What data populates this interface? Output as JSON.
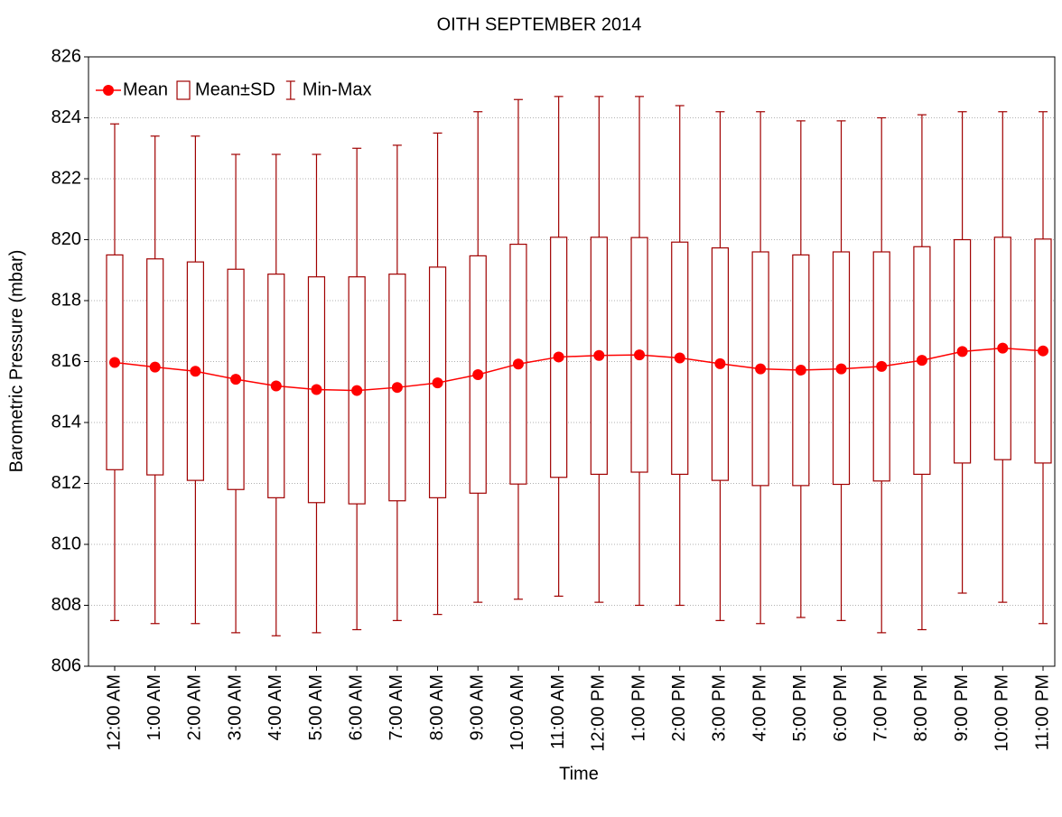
{
  "chart_data": {
    "type": "box",
    "title": "OITH SEPTEMBER 2014",
    "x_label": "Time",
    "y_label": "Barometric Pressure (mbar)",
    "categories": [
      "12:00 AM",
      "1:00 AM",
      "2:00 AM",
      "3:00 AM",
      "4:00 AM",
      "5:00 AM",
      "6:00 AM",
      "7:00 AM",
      "8:00 AM",
      "9:00 AM",
      "10:00 AM",
      "11:00 AM",
      "12:00 PM",
      "1:00 PM",
      "2:00 PM",
      "3:00 PM",
      "4:00 PM",
      "5:00 PM",
      "6:00 PM",
      "7:00 PM",
      "8:00 PM",
      "9:00 PM",
      "10:00 PM",
      "11:00 PM"
    ],
    "series": [
      {
        "name": "Mean",
        "color": "#ff0000",
        "values": [
          815.97,
          815.82,
          815.68,
          815.42,
          815.2,
          815.08,
          815.05,
          815.15,
          815.3,
          815.57,
          815.92,
          816.15,
          816.2,
          816.22,
          816.12,
          815.93,
          815.76,
          815.72,
          815.76,
          815.84,
          816.04,
          816.33,
          816.44,
          816.35
        ]
      },
      {
        "name": "Mean±SD",
        "color": "#a00000",
        "low": [
          812.45,
          812.28,
          812.1,
          811.8,
          811.53,
          811.37,
          811.33,
          811.43,
          811.53,
          811.68,
          811.98,
          812.2,
          812.3,
          812.37,
          812.3,
          812.1,
          811.93,
          811.93,
          811.97,
          812.08,
          812.3,
          812.67,
          812.78,
          812.67
        ],
        "high": [
          819.5,
          819.37,
          819.27,
          819.03,
          818.87,
          818.78,
          818.78,
          818.87,
          819.1,
          819.47,
          819.85,
          820.08,
          820.08,
          820.07,
          819.92,
          819.73,
          819.6,
          819.5,
          819.6,
          819.6,
          819.77,
          820.0,
          820.08,
          820.02
        ]
      },
      {
        "name": "Min-Max",
        "color": "#a00000",
        "low": [
          807.5,
          807.4,
          807.4,
          807.1,
          807.0,
          807.1,
          807.2,
          807.5,
          807.7,
          808.1,
          808.2,
          808.3,
          808.1,
          808.0,
          808.0,
          807.5,
          807.4,
          807.6,
          807.5,
          807.1,
          807.2,
          808.4,
          808.1,
          807.4
        ],
        "high": [
          823.8,
          823.4,
          823.4,
          822.8,
          822.8,
          822.8,
          823.0,
          823.1,
          823.5,
          824.2,
          824.6,
          824.7,
          824.7,
          824.7,
          824.4,
          824.2,
          824.2,
          823.9,
          823.9,
          824.0,
          824.1,
          824.2,
          824.2,
          824.2
        ]
      }
    ],
    "ylim": [
      806,
      826
    ],
    "yticks": [
      806,
      808,
      810,
      812,
      814,
      816,
      818,
      820,
      822,
      824,
      826
    ],
    "grid": true,
    "legend": "upper left"
  }
}
